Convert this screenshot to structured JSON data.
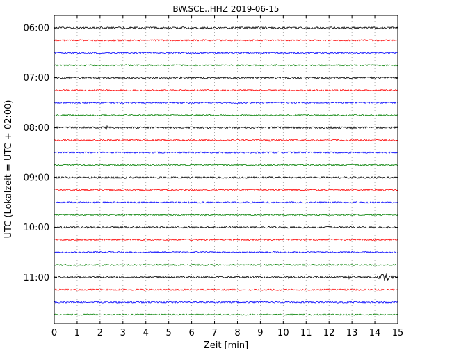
{
  "chart_data": {
    "type": "line",
    "variant": "helicorder-drum-plot",
    "title": "BW.SCE..HHZ 2019-06-15",
    "xlabel": "Zeit  [min]",
    "ylabel": "UTC (Lokalzeit = UTC + 02:00)",
    "x_range": [
      0,
      15
    ],
    "x_ticks": [
      0,
      1,
      2,
      3,
      4,
      5,
      6,
      7,
      8,
      9,
      10,
      11,
      12,
      13,
      14,
      15
    ],
    "y_tick_labels": [
      "06:00",
      "07:00",
      "08:00",
      "09:00",
      "10:00",
      "11:00"
    ],
    "minutes_per_line": 15,
    "grid": {
      "vertical_dotted": true,
      "color": "#999999"
    },
    "trace_colors": [
      "#000000",
      "#ff0000",
      "#0000ff",
      "#008000"
    ],
    "traces": [
      {
        "start": "06:00",
        "color": "#000000",
        "amp": 1.4,
        "events": []
      },
      {
        "start": "06:15",
        "color": "#ff0000",
        "amp": 1.1,
        "events": []
      },
      {
        "start": "06:30",
        "color": "#0000ff",
        "amp": 1.1,
        "events": []
      },
      {
        "start": "06:45",
        "color": "#008000",
        "amp": 1.0,
        "events": []
      },
      {
        "start": "07:00",
        "color": "#000000",
        "amp": 1.3,
        "events": []
      },
      {
        "start": "07:15",
        "color": "#ff0000",
        "amp": 1.1,
        "events": []
      },
      {
        "start": "07:30",
        "color": "#0000ff",
        "amp": 1.1,
        "events": [
          {
            "x": 7.9,
            "amp": 0.7,
            "width": 0.08
          }
        ]
      },
      {
        "start": "07:45",
        "color": "#008000",
        "amp": 1.0,
        "events": []
      },
      {
        "start": "08:00",
        "color": "#000000",
        "amp": 1.4,
        "events": [
          {
            "x": 2.3,
            "amp": 1.0,
            "width": 0.12
          },
          {
            "x": 12.9,
            "amp": 0.7,
            "width": 0.1
          }
        ]
      },
      {
        "start": "08:15",
        "color": "#ff0000",
        "amp": 1.1,
        "events": [
          {
            "x": 9.4,
            "amp": 0.8,
            "width": 0.1
          }
        ]
      },
      {
        "start": "08:30",
        "color": "#0000ff",
        "amp": 1.1,
        "events": []
      },
      {
        "start": "08:45",
        "color": "#008000",
        "amp": 1.0,
        "events": []
      },
      {
        "start": "09:00",
        "color": "#000000",
        "amp": 1.3,
        "events": []
      },
      {
        "start": "09:15",
        "color": "#ff0000",
        "amp": 1.1,
        "events": []
      },
      {
        "start": "09:30",
        "color": "#0000ff",
        "amp": 1.1,
        "events": [
          {
            "x": 1.8,
            "amp": 0.6,
            "width": 0.08
          }
        ]
      },
      {
        "start": "09:45",
        "color": "#008000",
        "amp": 1.0,
        "events": []
      },
      {
        "start": "10:00",
        "color": "#000000",
        "amp": 1.3,
        "events": []
      },
      {
        "start": "10:15",
        "color": "#ff0000",
        "amp": 1.1,
        "events": []
      },
      {
        "start": "10:30",
        "color": "#0000ff",
        "amp": 1.0,
        "events": []
      },
      {
        "start": "10:45",
        "color": "#008000",
        "amp": 1.0,
        "events": []
      },
      {
        "start": "11:00",
        "color": "#000000",
        "amp": 1.3,
        "events": [
          {
            "x": 10.3,
            "amp": 0.8,
            "width": 0.1
          },
          {
            "x": 12.85,
            "amp": 2.0,
            "width": 0.05
          },
          {
            "x": 14.45,
            "amp": 4.5,
            "width": 0.22
          }
        ]
      },
      {
        "start": "11:15",
        "color": "#ff0000",
        "amp": 1.1,
        "events": []
      },
      {
        "start": "11:30",
        "color": "#0000ff",
        "amp": 1.1,
        "events": []
      },
      {
        "start": "11:45",
        "color": "#008000",
        "amp": 1.0,
        "events": []
      }
    ]
  }
}
